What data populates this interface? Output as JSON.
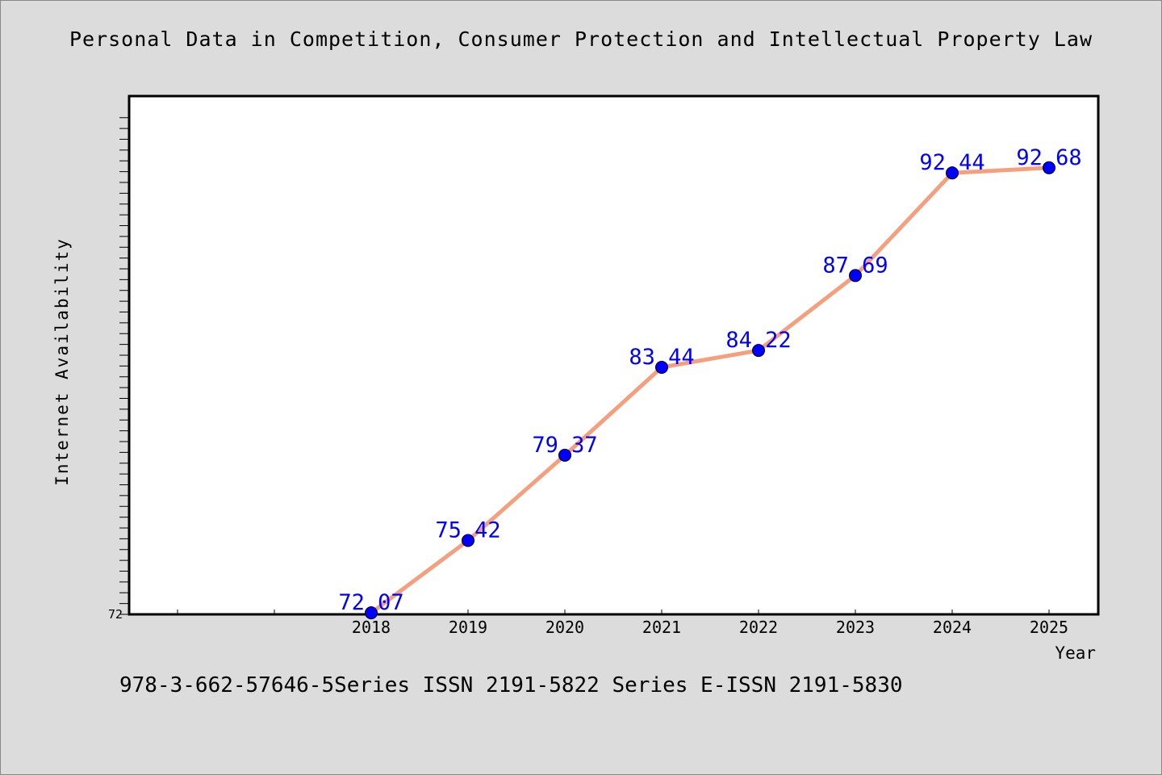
{
  "title": "Personal Data in Competition, Consumer Protection and Intellectual Property Law",
  "footer": "978-3-662-57646-5Series ISSN 2191-5822 Series E-ISSN 2191-5830",
  "colors": {
    "background": "#dcdcdc",
    "plot_background": "#ffffff",
    "line": "#f4a07f",
    "marker": "#0000ff",
    "data_label": "#0000ff"
  },
  "chart_data": {
    "type": "line",
    "xlabel": "Year",
    "ylabel": "Internet Availability",
    "categories": [
      "2018",
      "2019",
      "2020",
      "2021",
      "2022",
      "2023",
      "2024",
      "2025"
    ],
    "values": [
      72.07,
      75.42,
      79.37,
      83.44,
      84.22,
      87.69,
      92.44,
      92.68
    ],
    "data_labels": [
      "72.07",
      "75.42",
      "79.37",
      "83.44",
      "84.22",
      "87.69",
      "92.44",
      "92.68"
    ],
    "y_tick_labels": [
      "72"
    ],
    "ylim": [
      72,
      96
    ],
    "grid": false,
    "legend": "none"
  }
}
